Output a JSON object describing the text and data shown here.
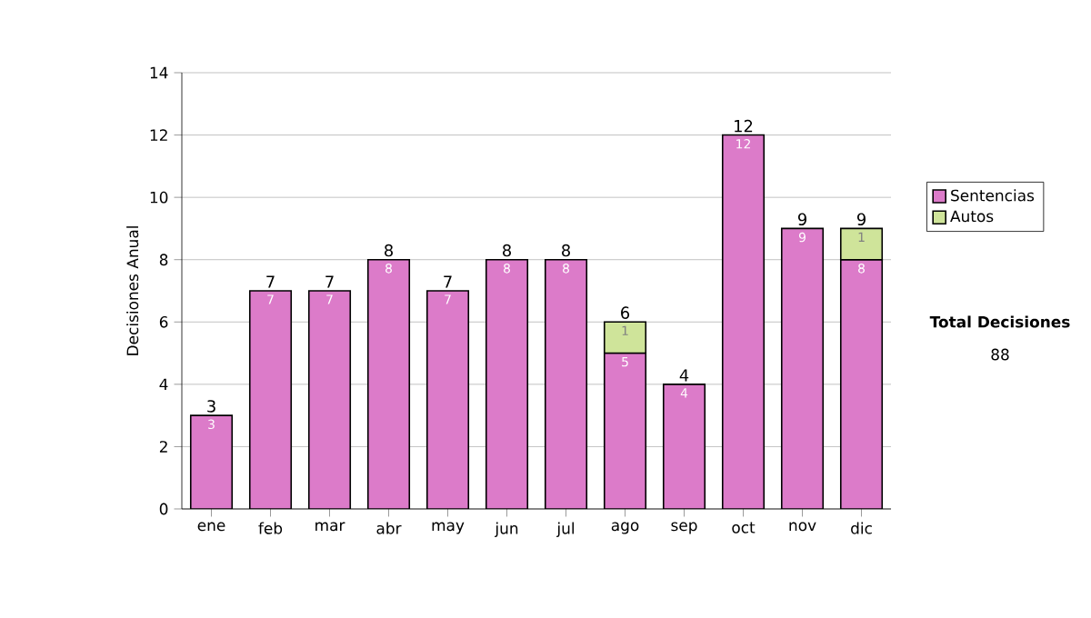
{
  "chart_data": {
    "type": "bar",
    "stacked": true,
    "ylabel": "Decisiones Anual",
    "categories": [
      "ene",
      "feb",
      "mar",
      "abr",
      "may",
      "jun",
      "jul",
      "ago",
      "sep",
      "oct",
      "nov",
      "dic"
    ],
    "series": [
      {
        "name": "Sentencias",
        "color": "#dc7bc9",
        "values": [
          3,
          7,
          7,
          8,
          7,
          8,
          8,
          5,
          4,
          12,
          9,
          8
        ]
      },
      {
        "name": "Autos",
        "color": "#cfe49a",
        "values": [
          null,
          null,
          null,
          null,
          null,
          null,
          null,
          1,
          null,
          null,
          null,
          1
        ]
      }
    ],
    "totals": [
      "3",
      "7",
      "7",
      "8",
      "7",
      "8",
      "8",
      "6",
      "4",
      "12",
      "9",
      "9"
    ],
    "ylim": [
      0,
      14
    ],
    "yticks": [
      0,
      2,
      4,
      6,
      8,
      10,
      12,
      14
    ],
    "grid": "y",
    "legend": "right",
    "data_labels": true,
    "annotations": [
      "**Total Decisiones**",
      "88"
    ]
  }
}
